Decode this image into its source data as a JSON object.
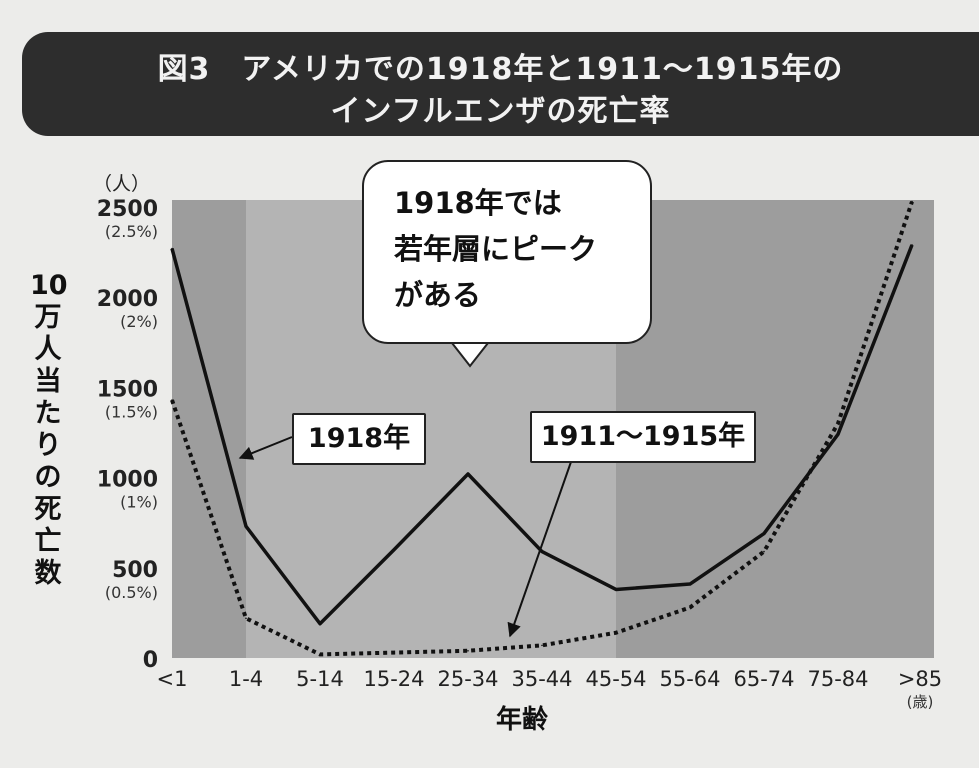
{
  "title": {
    "line1": "図3　アメリカでの1918年と1911～1915年の",
    "line2": "インフルエンザの死亡率"
  },
  "chart_data": {
    "type": "line",
    "categories": [
      "<1",
      "1-4",
      "5-14",
      "15-24",
      "25-34",
      "35-44",
      "45-54",
      "55-64",
      "65-74",
      "75-84",
      ">85"
    ],
    "series": [
      {
        "name": "1918年",
        "style": "solid",
        "values": [
          2270,
          730,
          190,
          600,
          1020,
          590,
          380,
          410,
          690,
          1240,
          2290
        ]
      },
      {
        "name": "1911～1915年",
        "style": "dotted",
        "values": [
          1430,
          220,
          20,
          30,
          40,
          70,
          140,
          280,
          590,
          1300,
          2530
        ]
      }
    ],
    "ylim": [
      0,
      2500
    ],
    "yticks": [
      {
        "value": 0,
        "label": "0",
        "pct": ""
      },
      {
        "value": 500,
        "label": "500",
        "pct": "(0.5%)"
      },
      {
        "value": 1000,
        "label": "1000",
        "pct": "(1%)"
      },
      {
        "value": 1500,
        "label": "1500",
        "pct": "(1.5%)"
      },
      {
        "value": 2000,
        "label": "2000",
        "pct": "(2%)"
      },
      {
        "value": 2500,
        "label": "2500",
        "pct": "(2.5%)"
      }
    ],
    "y_unit": "（人）",
    "ylabel": [
      "10",
      "万",
      "人",
      "当",
      "た",
      "り",
      "の",
      "死",
      "亡",
      "数"
    ],
    "xlabel": "年齢",
    "x_unit": "(歳)",
    "annotations": {
      "callout": [
        "1918年では",
        "若年層にピーク",
        "がある"
      ],
      "label_1918": "1918年",
      "label_1911": "1911～1915年"
    }
  },
  "colors": {
    "plot_dark": "#9d9d9d",
    "plot_mid": "#b4b4b4",
    "line": "#111111"
  }
}
